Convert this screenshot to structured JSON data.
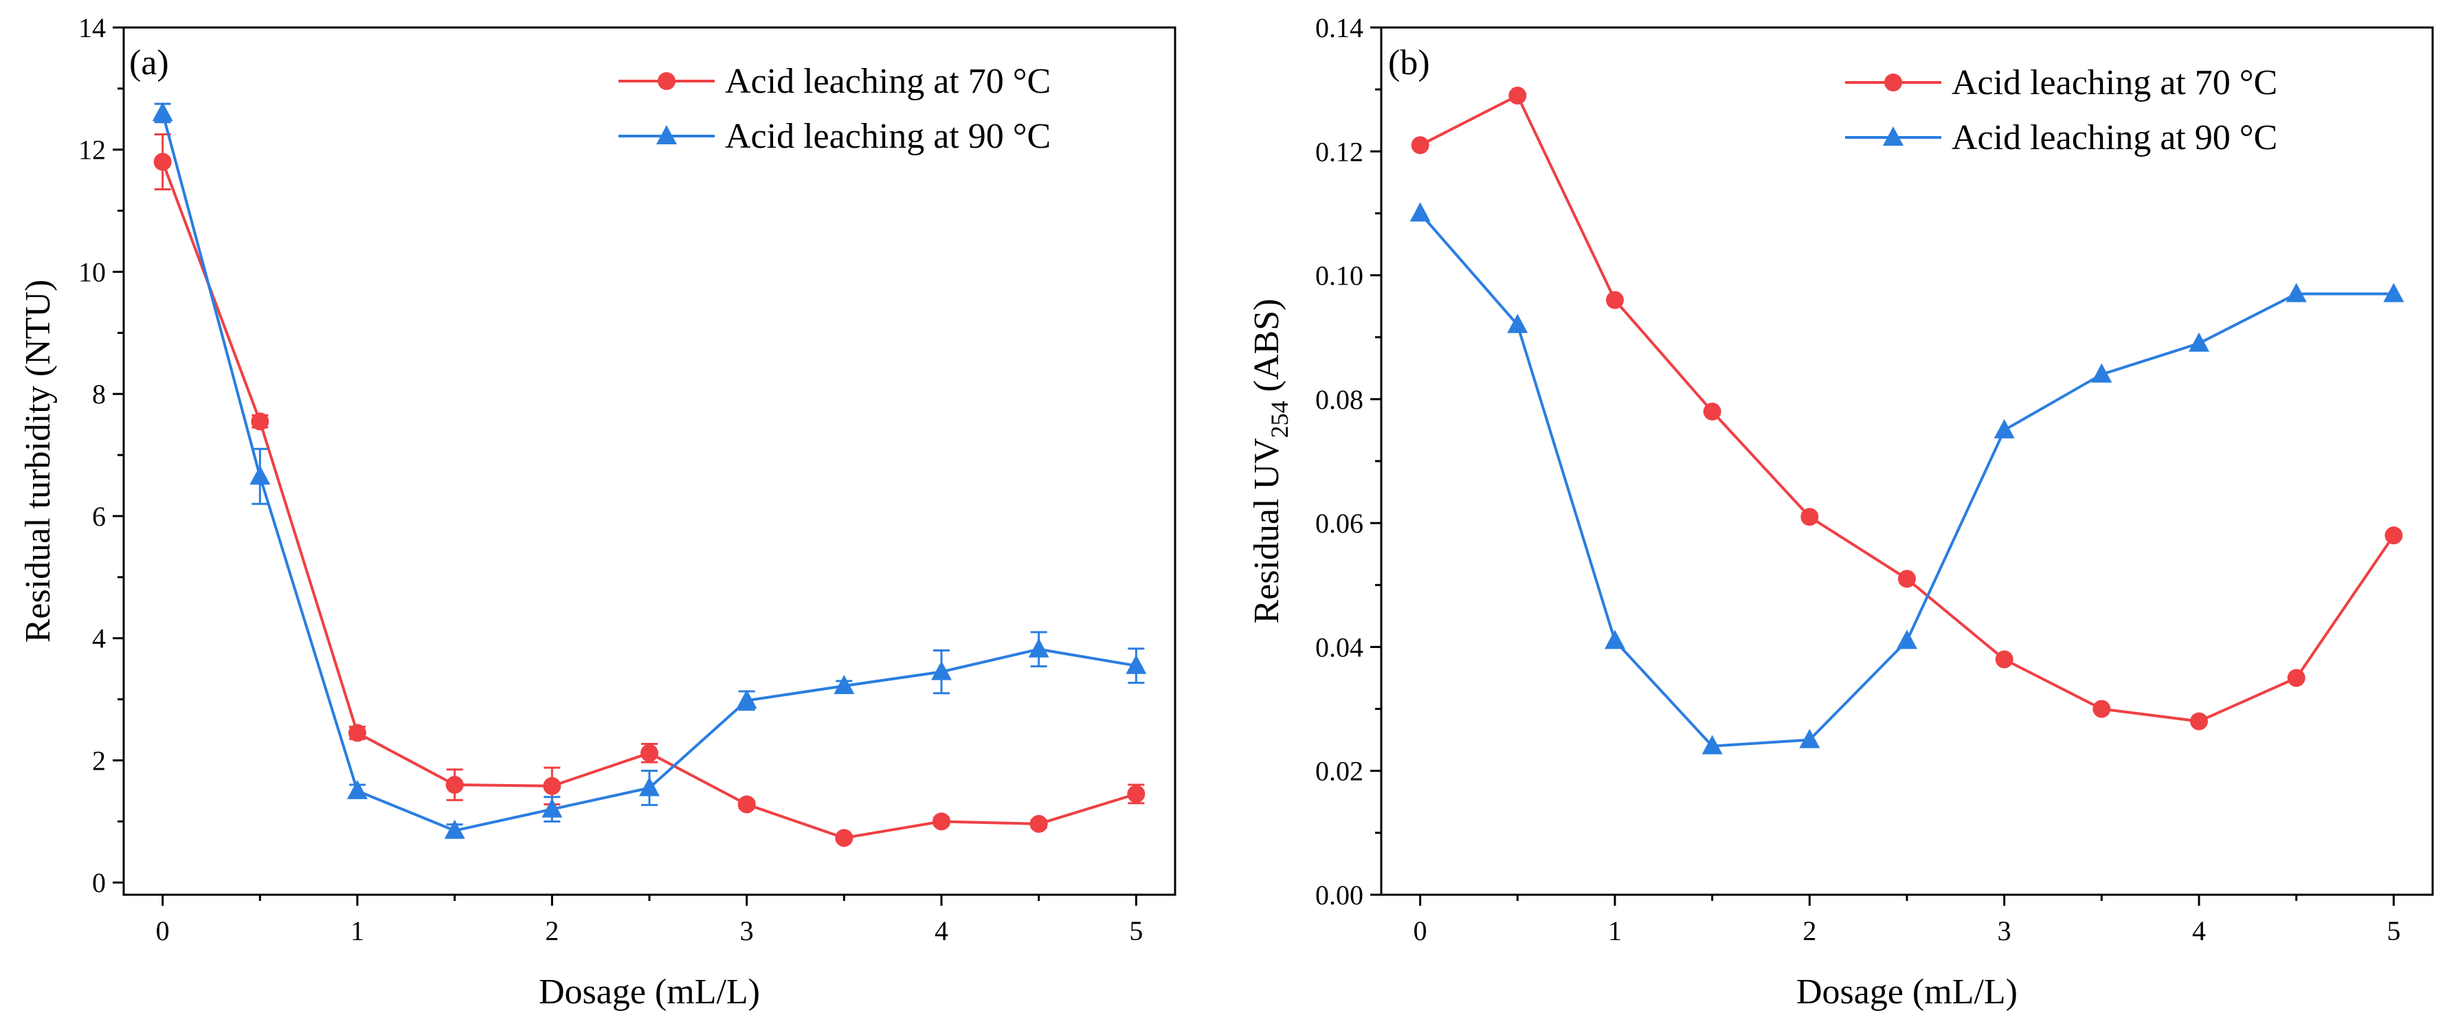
{
  "colors": {
    "red": "#ef4044",
    "blue": "#2a7ee0",
    "axis": "#000000"
  },
  "chart_data": [
    {
      "type": "line",
      "panel_label": "(a)",
      "xlabel": "Dosage (mL/L)",
      "ylabel": "Residual turbidity (NTU)",
      "xlim": [
        -0.2,
        5.2
      ],
      "ylim": [
        -0.2,
        14
      ],
      "xticks": [
        "0",
        "1",
        "2",
        "3",
        "4",
        "5"
      ],
      "yticks": [
        "0",
        "2",
        "4",
        "6",
        "8",
        "10",
        "12",
        "14"
      ],
      "x": [
        0,
        0.5,
        1,
        1.5,
        2,
        2.5,
        3,
        3.5,
        4,
        4.5,
        5
      ],
      "legend_position": "top-right",
      "series": [
        {
          "name": "Acid leaching at 70 °C",
          "marker": "circle",
          "color": "#ef4044",
          "values": [
            11.8,
            7.55,
            2.45,
            1.6,
            1.58,
            2.12,
            1.28,
            0.73,
            1.0,
            0.96,
            1.45
          ],
          "errors": [
            0.45,
            0.1,
            0.1,
            0.25,
            0.3,
            0.15,
            0.06,
            0.05,
            0.06,
            0.06,
            0.15
          ]
        },
        {
          "name": "Acid leaching at 90 °C",
          "marker": "triangle",
          "color": "#2a7ee0",
          "values": [
            12.6,
            6.65,
            1.5,
            0.85,
            1.2,
            1.55,
            2.98,
            3.22,
            3.45,
            3.82,
            3.55
          ],
          "errors": [
            0.15,
            0.45,
            0.1,
            0.1,
            0.2,
            0.28,
            0.15,
            0.08,
            0.35,
            0.28,
            0.28
          ]
        }
      ]
    },
    {
      "type": "line",
      "panel_label": "(b)",
      "xlabel": "Dosage (mL/L)",
      "ylabel_prefix": "Residual UV",
      "ylabel_sub": "254",
      "ylabel_suffix": " (ABS)",
      "xlim": [
        -0.2,
        5.2
      ],
      "ylim": [
        0,
        0.14
      ],
      "xticks": [
        "0",
        "1",
        "2",
        "3",
        "4",
        "5"
      ],
      "yticks": [
        "0.00",
        "0.02",
        "0.04",
        "0.06",
        "0.08",
        "0.10",
        "0.12",
        "0.14"
      ],
      "x": [
        0,
        0.5,
        1,
        1.5,
        2,
        2.5,
        3,
        3.5,
        4,
        4.5,
        5
      ],
      "legend_position": "top-right",
      "series": [
        {
          "name": "Acid leaching at 70 °C",
          "marker": "circle",
          "color": "#ef4044",
          "values": [
            0.121,
            0.129,
            0.096,
            0.078,
            0.061,
            0.051,
            0.038,
            0.03,
            0.028,
            0.035,
            0.058
          ]
        },
        {
          "name": "Acid leaching at 90 °C",
          "marker": "triangle",
          "color": "#2a7ee0",
          "values": [
            0.11,
            0.092,
            0.041,
            0.024,
            0.025,
            0.041,
            0.075,
            0.084,
            0.089,
            0.097,
            0.097
          ]
        }
      ]
    }
  ]
}
